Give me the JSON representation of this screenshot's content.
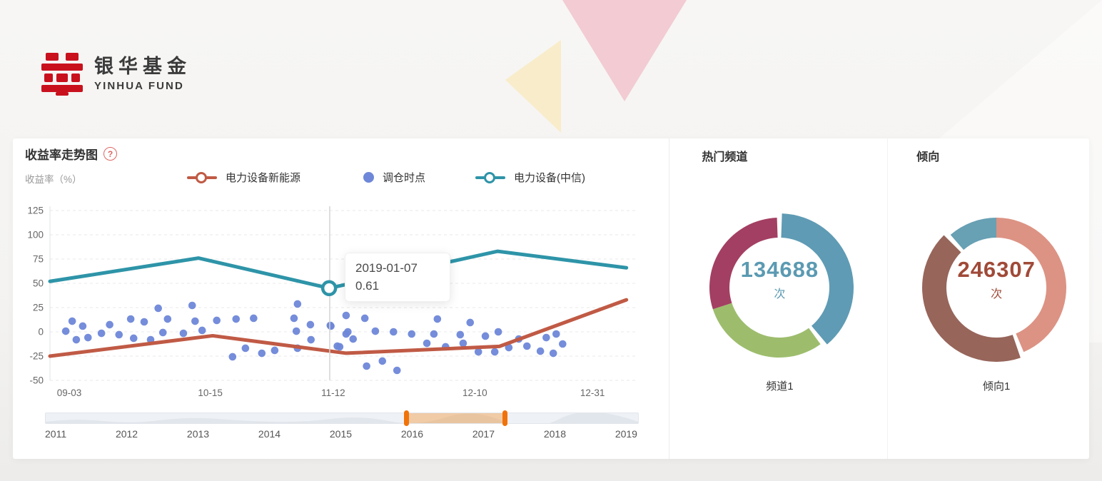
{
  "brand": {
    "name_cn": "银华基金",
    "name_en": "YINHUA FUND"
  },
  "chart_panel": {
    "title": "收益率走势图",
    "help_icon": "?",
    "y_axis_name": "收益率（%）",
    "legend": [
      {
        "label": "电力设备新能源",
        "marker": "line-ring",
        "color": "#c05a45"
      },
      {
        "label": "调仓时点",
        "marker": "dot",
        "color": "#6e87d8"
      },
      {
        "label": "电力设备(中信)",
        "marker": "line-ring",
        "color": "#2e94a8"
      }
    ],
    "tooltip": {
      "date": "2019-01-07",
      "value": "0.61"
    }
  },
  "donut_panels": [
    {
      "title": "热门频道",
      "label": "频道1"
    },
    {
      "title": "倾向",
      "label": "倾向1"
    }
  ],
  "chart_data": [
    {
      "type": "line",
      "title": "收益率走势图",
      "ylabel": "收益率（%）",
      "ylim": [
        -50,
        125
      ],
      "yticks": [
        125,
        100,
        75,
        50,
        25,
        0,
        -25,
        -50
      ],
      "grid": true,
      "x_unit": "percent-of-axis",
      "xticks": [
        {
          "label": "09-03",
          "pct": 3.3
        },
        {
          "label": "10-15",
          "pct": 27.4
        },
        {
          "label": "11-12",
          "pct": 48.4
        },
        {
          "label": "12-10",
          "pct": 72.6
        },
        {
          "label": "12-31",
          "pct": 92.7
        }
      ],
      "series": [
        {
          "name": "电力设备(中信)",
          "type": "line",
          "color": "#2e94a8",
          "points": [
            [
              0,
              52
            ],
            [
              25.4,
              76
            ],
            [
              47.7,
              45
            ],
            [
              76.5,
              83
            ],
            [
              98.5,
              66
            ]
          ]
        },
        {
          "name": "电力设备新能源",
          "type": "line",
          "color": "#c05a45",
          "points": [
            [
              0,
              -25
            ],
            [
              27.8,
              -4
            ],
            [
              50.6,
              -22
            ],
            [
              76.8,
              -15
            ],
            [
              98.5,
              33
            ]
          ]
        },
        {
          "name": "调仓时点",
          "type": "scatter",
          "color": "#6e87d8",
          "points": [
            [
              3.8,
              11
            ],
            [
              2.7,
              0.7
            ],
            [
              4.5,
              -8.1
            ],
            [
              5.6,
              5.9
            ],
            [
              6.5,
              -5.9
            ],
            [
              8.8,
              -1.5
            ],
            [
              10.2,
              7.4
            ],
            [
              11.8,
              -2.9
            ],
            [
              13.8,
              13.2
            ],
            [
              14.3,
              -6.6
            ],
            [
              16.1,
              10.3
            ],
            [
              17.2,
              -8.1
            ],
            [
              18.5,
              24.3
            ],
            [
              19.3,
              -0.7
            ],
            [
              20.1,
              13.2
            ],
            [
              22.8,
              -1.5
            ],
            [
              24.3,
              27.2
            ],
            [
              24.8,
              11
            ],
            [
              26,
              1.5
            ],
            [
              28.5,
              11.8
            ],
            [
              31.2,
              -25.7
            ],
            [
              31.8,
              13.2
            ],
            [
              33.4,
              -16.9
            ],
            [
              34.8,
              14
            ],
            [
              36.2,
              -22.1
            ],
            [
              38.4,
              -19.1
            ],
            [
              41.7,
              14
            ],
            [
              42.1,
              0.7
            ],
            [
              42.3,
              28.7
            ],
            [
              42.3,
              -16.9
            ],
            [
              44.5,
              7.4
            ],
            [
              44.6,
              -8.1
            ],
            [
              47.9,
              6.6
            ],
            [
              48,
              5.9
            ],
            [
              49.1,
              -14.7
            ],
            [
              49.5,
              -15.4
            ],
            [
              50.6,
              16.9
            ],
            [
              50.6,
              -2.2
            ],
            [
              50.9,
              0
            ],
            [
              51.8,
              -7.4
            ],
            [
              53.8,
              14
            ],
            [
              54.1,
              -35.3
            ],
            [
              55.6,
              0.7
            ],
            [
              56.8,
              -30.1
            ],
            [
              58.7,
              0
            ],
            [
              59.3,
              -39.7
            ],
            [
              61.8,
              -2.2
            ],
            [
              64.4,
              -11.8
            ],
            [
              65.6,
              -2.2
            ],
            [
              66.2,
              13.2
            ],
            [
              67.6,
              -15.4
            ],
            [
              70.1,
              -2.9
            ],
            [
              70.6,
              -11.8
            ],
            [
              71.8,
              9.6
            ],
            [
              73.2,
              -20.6
            ],
            [
              74.4,
              -4.4
            ],
            [
              76,
              -20.6
            ],
            [
              76.6,
              0
            ],
            [
              78.4,
              -16.2
            ],
            [
              80.1,
              -7.4
            ],
            [
              81.5,
              -14.7
            ],
            [
              83.8,
              -19.9
            ],
            [
              84.8,
              -5.9
            ],
            [
              86,
              -22.1
            ],
            [
              86.5,
              -2.2
            ],
            [
              87.6,
              -12.5
            ]
          ]
        }
      ],
      "axis_pointer_pct": 47.8,
      "hover_marker": {
        "pct": 47.7,
        "value": 45,
        "color": "#2e94a8"
      },
      "tooltip": {
        "date": "2019-01-07",
        "value": 0.61
      },
      "datazoom": {
        "years": [
          "2011",
          "2012",
          "2013",
          "2014",
          "2015",
          "2016",
          "2017",
          "2018",
          "2019"
        ],
        "selected_pct": [
          60.9,
          77.5
        ],
        "handle_color": "#f0730a"
      }
    },
    {
      "type": "pie",
      "title": "热门频道",
      "center_value": "134688",
      "center_unit": "次",
      "value_color": "#5b9ab2",
      "label": "频道1",
      "angle_unit": "degrees-clockwise-from-top",
      "segments": [
        {
          "name": "teal",
          "color": "#5f9bb4",
          "start": 2,
          "end": 140,
          "emphasis": true
        },
        {
          "name": "green",
          "color": "#9dbd6d",
          "start": 144,
          "end": 252,
          "emphasis": false
        },
        {
          "name": "maroon",
          "color": "#a33f62",
          "start": 252,
          "end": 358,
          "emphasis": false
        }
      ]
    },
    {
      "type": "pie",
      "title": "倾向",
      "center_value": "246307",
      "center_unit": "次",
      "value_color": "#a04a38",
      "label": "倾向1",
      "angle_unit": "degrees-clockwise-from-top",
      "segments": [
        {
          "name": "salmon",
          "color": "#dc9384",
          "start": 0,
          "end": 157,
          "emphasis": false
        },
        {
          "name": "brown",
          "color": "#97655a",
          "start": 161,
          "end": 315,
          "emphasis": true
        },
        {
          "name": "teal",
          "color": "#68a0b4",
          "start": 319,
          "end": 360,
          "emphasis": false
        }
      ]
    }
  ]
}
